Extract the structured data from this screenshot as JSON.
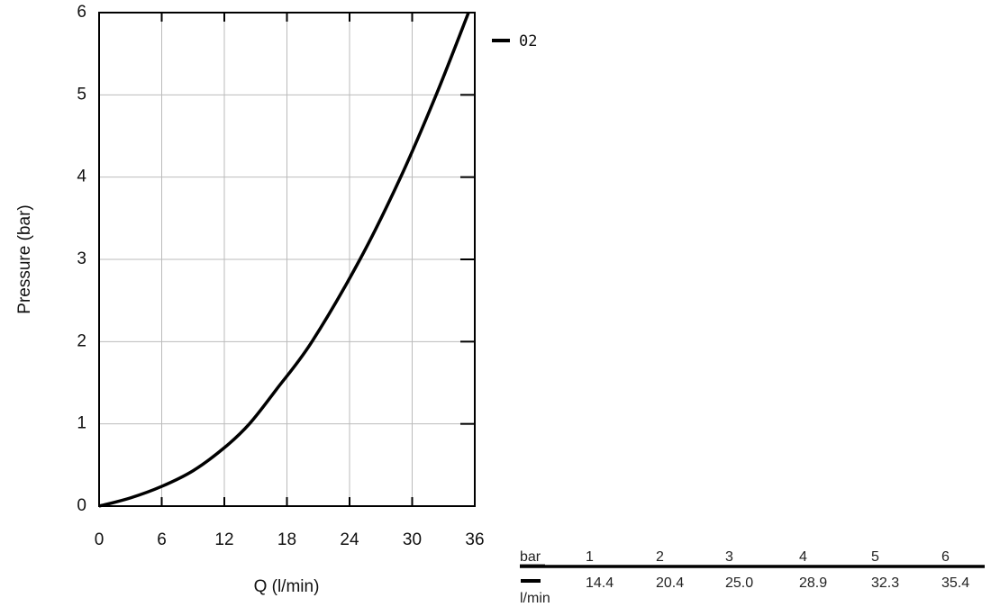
{
  "chart_data": {
    "type": "line",
    "xlabel": "Q (l/min)",
    "ylabel": "Pressure (bar)",
    "x": [
      0,
      3,
      6,
      9,
      12,
      14.4,
      17,
      20.4,
      25.0,
      28.9,
      32.3,
      35.4
    ],
    "series": [
      {
        "name": "02",
        "color": "#000000",
        "values": [
          0,
          0.1,
          0.24,
          0.43,
          0.71,
          1,
          1.42,
          2,
          3,
          4,
          5,
          6
        ]
      }
    ],
    "xlim": [
      0,
      36
    ],
    "xticks": [
      0,
      6,
      12,
      18,
      24,
      30,
      36
    ],
    "ylim": [
      0,
      6
    ],
    "yticks": [
      0,
      1,
      2,
      3,
      4,
      5,
      6
    ],
    "grid": true
  },
  "table": {
    "header": [
      "bar",
      "1",
      "2",
      "3",
      "4",
      "5",
      "6"
    ],
    "row_label": "l/min",
    "values": [
      "14.4",
      "20.4",
      "25.0",
      "28.9",
      "32.3",
      "35.4"
    ]
  }
}
